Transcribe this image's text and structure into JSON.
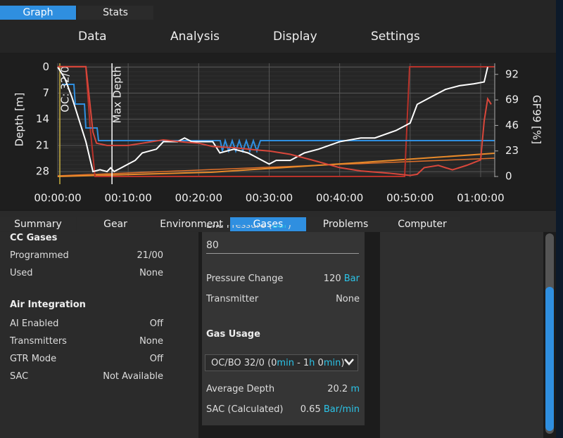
{
  "tabs_top": [
    "Graph",
    "Stats"
  ],
  "menu": [
    "Data",
    "Analysis",
    "Display",
    "Settings"
  ],
  "chart_data": {
    "type": "line",
    "ylabel": "Depth [m]",
    "y2label": "GF99 [%]",
    "xlim": [
      0,
      62
    ],
    "ylim": [
      -1,
      29.5
    ],
    "y_inverted": true,
    "y2lim": [
      -0.6,
      102
    ],
    "grid": true,
    "xticks": [
      {
        "value": 0,
        "label": "00:00:00"
      },
      {
        "value": 10,
        "label": "00:10:00"
      },
      {
        "value": 20,
        "label": "00:20:00"
      },
      {
        "value": 30,
        "label": "00:30:00"
      },
      {
        "value": 40,
        "label": "00:40:00"
      },
      {
        "value": 50,
        "label": "00:50:00"
      },
      {
        "value": 60,
        "label": "01:00:00"
      }
    ],
    "yticks": [
      0,
      7,
      14,
      21,
      28
    ],
    "y2ticks": [
      0,
      23,
      46,
      69,
      92
    ],
    "annotations": [
      {
        "text": "OC: 32/0",
        "x": 0.3
      },
      {
        "text": "Max Depth",
        "x": 7.7
      }
    ],
    "series": [
      {
        "color": "#ffffff",
        "axis": "y",
        "x": [
          0,
          1,
          2,
          3,
          4,
          5,
          6,
          7,
          7.5,
          8,
          9,
          10,
          11,
          12,
          14,
          15,
          17,
          18,
          19,
          22,
          23,
          25,
          27,
          29,
          30,
          31,
          33,
          35,
          37,
          40,
          43,
          45,
          48,
          50,
          51,
          53,
          55,
          57,
          59,
          60.5,
          61
        ],
        "values": [
          0,
          3,
          8,
          14,
          20,
          28,
          27.5,
          28,
          27,
          28,
          27,
          26,
          25,
          23,
          22,
          20,
          20,
          19,
          20,
          20,
          23,
          22,
          23,
          25,
          26,
          25,
          25,
          23,
          22,
          20,
          19,
          19,
          17,
          15,
          10,
          8,
          6,
          5,
          4.5,
          4,
          0
        ]
      },
      {
        "color": "#d9473b",
        "axis": "y2",
        "x": [
          0,
          4,
          4.5,
          5,
          5.5,
          7,
          10,
          12,
          15,
          18,
          20,
          22,
          25,
          28,
          30,
          33,
          36,
          40,
          43,
          47,
          50,
          51,
          52,
          54,
          56,
          58,
          60,
          60.5,
          61,
          61.5
        ],
        "values": [
          99,
          99,
          70,
          40,
          30,
          28,
          28,
          30,
          33,
          31,
          30,
          27,
          26,
          24,
          23,
          20,
          15,
          8,
          5,
          3,
          1,
          2,
          8,
          10,
          6,
          10,
          15,
          50,
          70,
          65
        ]
      }
    ]
  },
  "tabs_bottom": [
    "Summary",
    "Gear",
    "Environment",
    "Gases",
    "Problems",
    "Computer"
  ],
  "left_panel": {
    "cc_title": "CC Gases",
    "cc_rows": [
      [
        "Programmed",
        "21/00"
      ],
      [
        "Used",
        "None"
      ]
    ],
    "air_title": "Air Integration",
    "air_rows": [
      [
        "AI Enabled",
        "Off"
      ],
      [
        "Transmitters",
        "None"
      ],
      [
        "GTR Mode",
        "Off"
      ],
      [
        "SAC",
        "Not Available"
      ]
    ]
  },
  "middle_panel": {
    "end_pressure_label": "End Pressure (",
    "end_pressure_unit": "Bar",
    "end_pressure_close": ")",
    "end_pressure_value": "80",
    "pressure_change_label": "Pressure Change",
    "pressure_change_value": "120",
    "pressure_change_unit": "Bar",
    "transmitter_label": "Transmitter",
    "transmitter_value": "None",
    "gas_usage_title": "Gas Usage",
    "gas_select": [
      "OC/BO 32/0 (0",
      "min",
      " - 1",
      "h",
      " 0",
      "min",
      ")"
    ],
    "avg_depth_label": "Average Depth",
    "avg_depth_value": "20.2",
    "avg_depth_unit": "m",
    "sac_label": "SAC (Calculated)",
    "sac_value": "0.65",
    "sac_unit": "Bar/min"
  }
}
